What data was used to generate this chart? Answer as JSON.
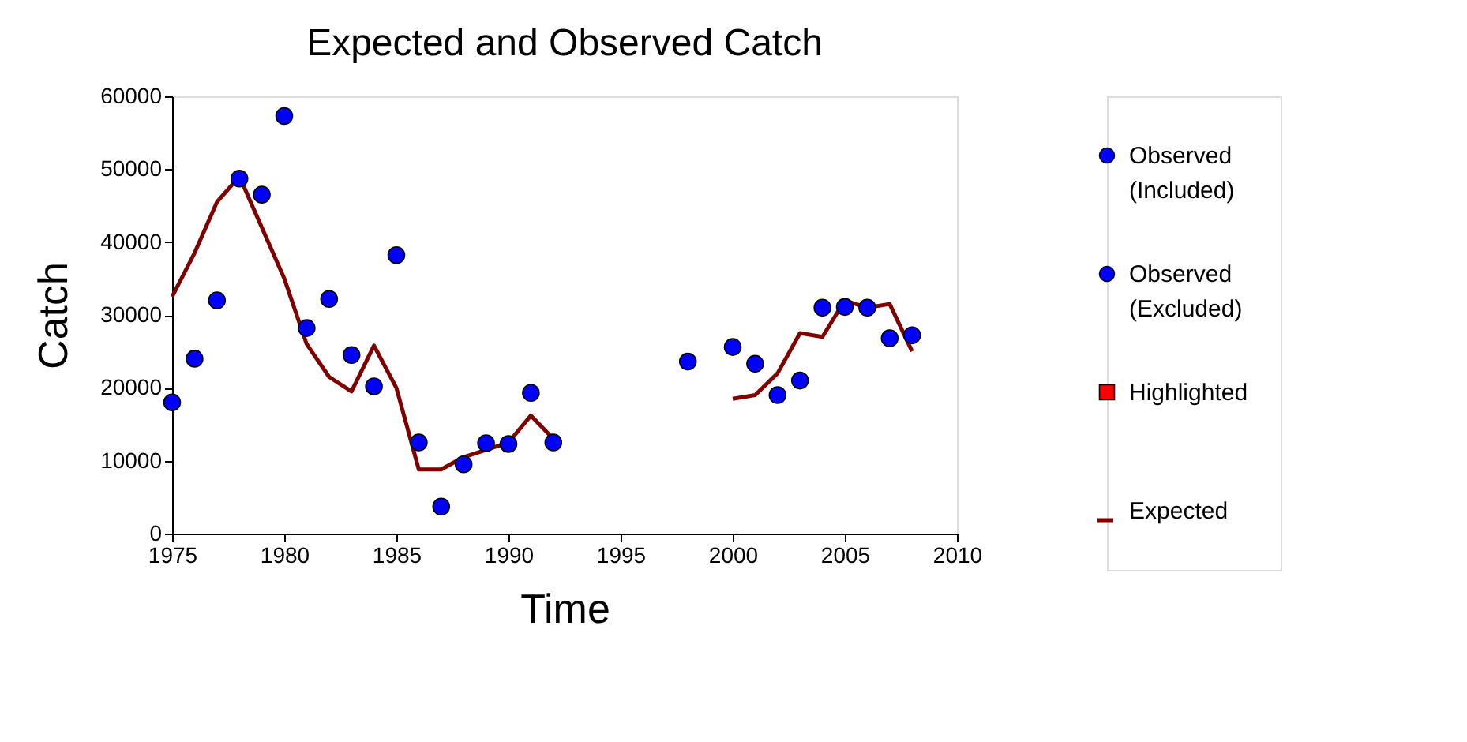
{
  "chart_data": {
    "type": "scatter",
    "title": "Expected and Observed Catch",
    "xlabel": "Time",
    "ylabel": "Catch",
    "xlim": [
      1975,
      2010
    ],
    "xticks": [
      1975,
      1980,
      1985,
      1990,
      1995,
      2000,
      2005,
      2010
    ],
    "ylim": [
      0,
      60000
    ],
    "yticks": [
      0,
      10000,
      20000,
      30000,
      40000,
      50000,
      60000
    ],
    "grid": false,
    "legend": "right",
    "series": [
      {
        "name": "Observed (Included)",
        "marker": "circle",
        "color": "#0000ff",
        "x": [
          1975,
          1976,
          1977,
          1978,
          1979,
          1980,
          1981,
          1982,
          1983,
          1984,
          1985,
          1986,
          1987,
          1988,
          1989,
          1990,
          1991,
          1992,
          1998,
          2000,
          2001,
          2002,
          2003,
          2004,
          2005,
          2006,
          2007,
          2008
        ],
        "values": [
          18000,
          24000,
          32000,
          48700,
          46500,
          57300,
          28200,
          32200,
          24500,
          20200,
          38200,
          12500,
          3700,
          9500,
          12400,
          12300,
          19300,
          12500,
          23600,
          25600,
          23300,
          19000,
          21000,
          31000,
          31100,
          31000,
          26800,
          27200
        ]
      },
      {
        "name": "Observed (Excluded)",
        "marker": "circle",
        "color": "#0000ff"
      },
      {
        "name": "Highlighted",
        "marker": "square",
        "color": "#ff0000"
      },
      {
        "name": "Expected",
        "type": "line",
        "line_style": "solid",
        "color": "#800000",
        "x": [
          1975,
          1976,
          1977,
          1978,
          1979,
          1980,
          1981,
          1982,
          1983,
          1984,
          1985,
          1986,
          1987,
          1988,
          1989,
          1990,
          1991,
          1992,
          1996,
          2000,
          2001,
          2002,
          2003,
          2004,
          2005,
          2006,
          2007,
          2008
        ],
        "values": [
          32500,
          38500,
          45500,
          49000,
          42000,
          35000,
          26000,
          21500,
          19500,
          25800,
          20000,
          8800,
          8800,
          10500,
          11500,
          12500,
          16200,
          13000,
          null,
          18500,
          19000,
          22000,
          27500,
          27000,
          32000,
          31000,
          31500,
          25000
        ]
      }
    ]
  }
}
